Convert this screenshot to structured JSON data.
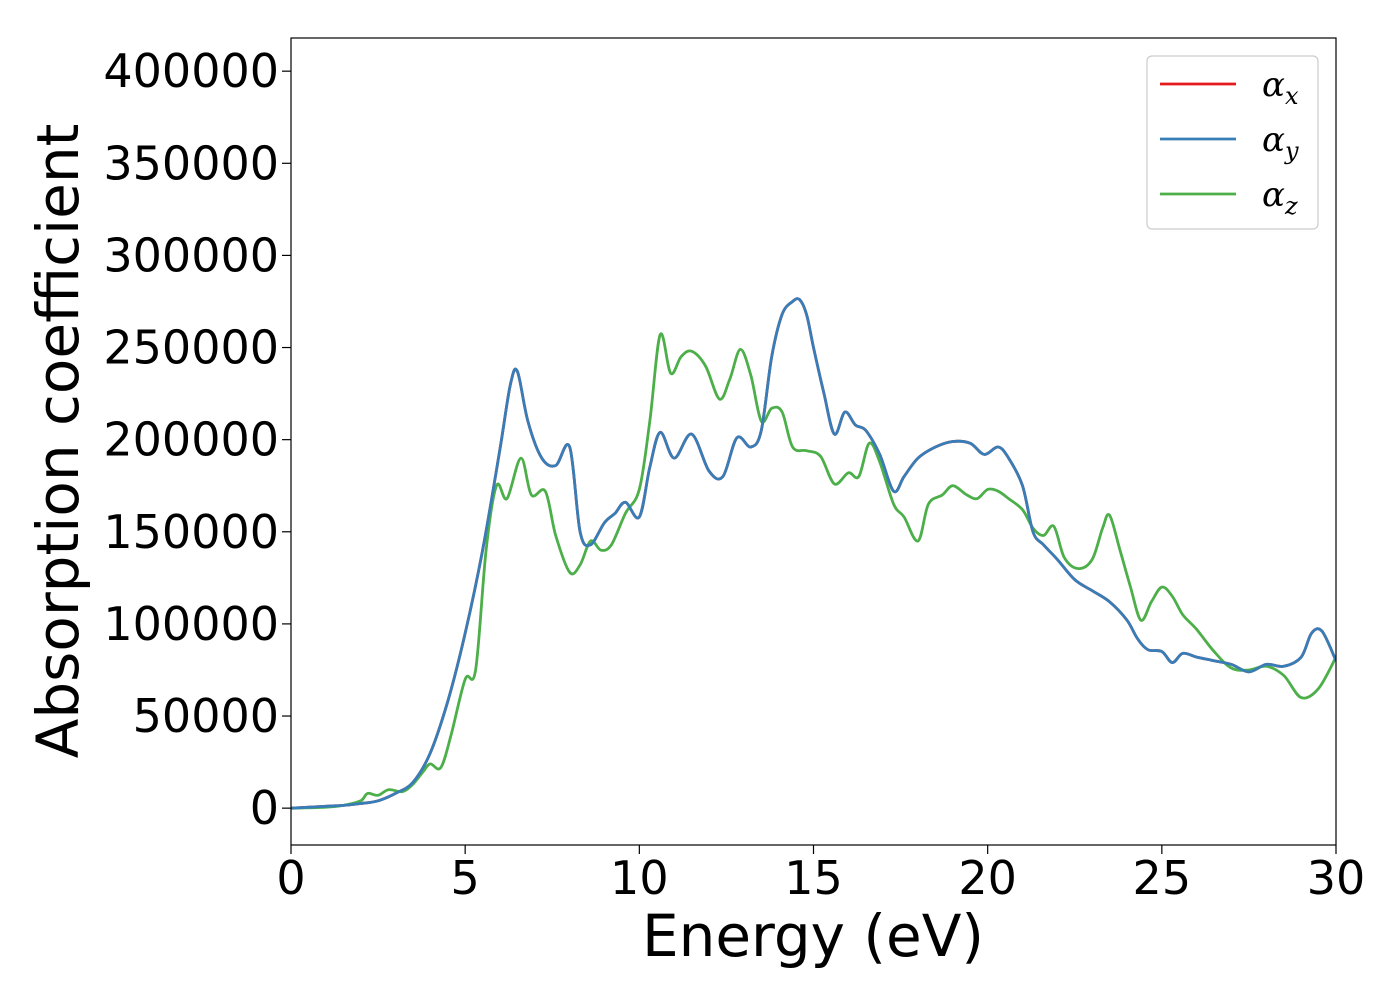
{
  "chart_data": {
    "type": "line",
    "title": "",
    "xlabel": "Energy (eV)",
    "ylabel": "Absorption coefficient",
    "xlim": [
      0,
      30
    ],
    "ylim": [
      -20000,
      418000
    ],
    "xticks": [
      0,
      5,
      10,
      15,
      20,
      25,
      30
    ],
    "xtick_labels": [
      "0",
      "5",
      "10",
      "15",
      "20",
      "25",
      "30"
    ],
    "yticks": [
      0,
      50000,
      100000,
      150000,
      200000,
      250000,
      300000,
      350000,
      400000
    ],
    "ytick_labels": [
      "0",
      "50000",
      "100000",
      "150000",
      "200000",
      "250000",
      "300000",
      "350000",
      "400000"
    ],
    "grid": false,
    "legend_position": "top-right",
    "series": [
      {
        "name": "α_x",
        "legend_base": "α",
        "legend_sub": "x",
        "color": "#e41a1c",
        "x": [
          0,
          1,
          1.5,
          2,
          2.5,
          3,
          3.5,
          4,
          4.5,
          5,
          5.5,
          6,
          6.3,
          6.5,
          6.8,
          7.2,
          7.6,
          8.0,
          8.3,
          8.6,
          9.0,
          9.3,
          9.6,
          10.0,
          10.3,
          10.6,
          11.0,
          11.5,
          12.0,
          12.4,
          12.8,
          13.2,
          13.5,
          13.8,
          14.1,
          14.4,
          14.6,
          14.8,
          15.0,
          15.3,
          15.6,
          15.9,
          16.2,
          16.5,
          16.9,
          17.3,
          17.6,
          18.0,
          18.5,
          19.0,
          19.5,
          19.9,
          20.3,
          20.6,
          21.0,
          21.3,
          21.6,
          22.0,
          22.5,
          23.0,
          23.5,
          24.0,
          24.3,
          24.6,
          25.0,
          25.3,
          25.6,
          26.0,
          26.5,
          27.0,
          27.5,
          28.0,
          28.5,
          29.0,
          29.3,
          29.6,
          30.0
        ],
        "y": [
          0,
          1000,
          1500,
          2500,
          4000,
          8000,
          14000,
          30000,
          58000,
          95000,
          140000,
          195000,
          230000,
          237000,
          210000,
          190000,
          186000,
          196000,
          150000,
          143000,
          155000,
          160000,
          166000,
          158000,
          185000,
          204000,
          190000,
          203000,
          183000,
          180000,
          201000,
          196000,
          205000,
          245000,
          268000,
          275000,
          276000,
          268000,
          250000,
          225000,
          203000,
          215000,
          208000,
          205000,
          192000,
          172000,
          180000,
          190000,
          196000,
          199000,
          198000,
          192000,
          196000,
          190000,
          175000,
          150000,
          143000,
          135000,
          124000,
          118000,
          112000,
          102000,
          92000,
          86000,
          85000,
          79000,
          84000,
          82000,
          80000,
          78000,
          74000,
          78000,
          77000,
          82000,
          95000,
          96000,
          80000
        ]
      },
      {
        "name": "α_y",
        "legend_base": "α",
        "legend_sub": "y",
        "color": "#377eb8",
        "x": [
          0,
          1,
          1.5,
          2,
          2.5,
          3,
          3.5,
          4,
          4.5,
          5,
          5.5,
          6,
          6.3,
          6.5,
          6.8,
          7.2,
          7.6,
          8.0,
          8.3,
          8.6,
          9.0,
          9.3,
          9.6,
          10.0,
          10.3,
          10.6,
          11.0,
          11.5,
          12.0,
          12.4,
          12.8,
          13.2,
          13.5,
          13.8,
          14.1,
          14.4,
          14.6,
          14.8,
          15.0,
          15.3,
          15.6,
          15.9,
          16.2,
          16.5,
          16.9,
          17.3,
          17.6,
          18.0,
          18.5,
          19.0,
          19.5,
          19.9,
          20.3,
          20.6,
          21.0,
          21.3,
          21.6,
          22.0,
          22.5,
          23.0,
          23.5,
          24.0,
          24.3,
          24.6,
          25.0,
          25.3,
          25.6,
          26.0,
          26.5,
          27.0,
          27.5,
          28.0,
          28.5,
          29.0,
          29.3,
          29.6,
          30.0
        ],
        "y": [
          0,
          1000,
          1500,
          2500,
          4000,
          8000,
          14000,
          30000,
          58000,
          95000,
          140000,
          195000,
          230000,
          237000,
          210000,
          190000,
          186000,
          196000,
          150000,
          143000,
          155000,
          160000,
          166000,
          158000,
          185000,
          204000,
          190000,
          203000,
          183000,
          180000,
          201000,
          196000,
          205000,
          245000,
          268000,
          275000,
          276000,
          268000,
          250000,
          225000,
          203000,
          215000,
          208000,
          205000,
          192000,
          172000,
          180000,
          190000,
          196000,
          199000,
          198000,
          192000,
          196000,
          190000,
          175000,
          150000,
          143000,
          135000,
          124000,
          118000,
          112000,
          102000,
          92000,
          86000,
          85000,
          79000,
          84000,
          82000,
          80000,
          78000,
          74000,
          78000,
          77000,
          82000,
          95000,
          96000,
          80000
        ]
      },
      {
        "name": "α_z",
        "legend_base": "α",
        "legend_sub": "z",
        "color": "#4daf4a",
        "x": [
          0,
          1,
          1.5,
          2,
          2.2,
          2.5,
          2.8,
          3.2,
          3.5,
          3.8,
          4.0,
          4.3,
          4.6,
          5.0,
          5.3,
          5.6,
          5.9,
          6.2,
          6.6,
          6.9,
          7.3,
          7.6,
          8.0,
          8.3,
          8.6,
          8.9,
          9.2,
          9.6,
          10.0,
          10.3,
          10.6,
          10.9,
          11.2,
          11.5,
          11.9,
          12.3,
          12.6,
          12.9,
          13.2,
          13.5,
          13.8,
          14.1,
          14.4,
          14.8,
          15.2,
          15.6,
          16.0,
          16.3,
          16.6,
          16.9,
          17.3,
          17.6,
          18.0,
          18.3,
          18.7,
          19.0,
          19.4,
          19.7,
          20.0,
          20.3,
          20.6,
          21.0,
          21.3,
          21.6,
          21.9,
          22.2,
          22.6,
          23.0,
          23.3,
          23.5,
          23.8,
          24.1,
          24.4,
          24.7,
          25.0,
          25.3,
          25.6,
          26.0,
          26.5,
          27.0,
          27.5,
          28.0,
          28.5,
          29.0,
          29.5,
          30.0
        ],
        "y": [
          0,
          500,
          1500,
          4000,
          8000,
          7000,
          10000,
          9000,
          13000,
          20000,
          24000,
          22000,
          40000,
          70000,
          75000,
          140000,
          175000,
          168000,
          190000,
          170000,
          172000,
          148000,
          128000,
          132000,
          145000,
          140000,
          143000,
          160000,
          173000,
          210000,
          257000,
          236000,
          245000,
          248000,
          240000,
          222000,
          233000,
          249000,
          235000,
          210000,
          217000,
          215000,
          196000,
          194000,
          191000,
          176000,
          182000,
          180000,
          198000,
          188000,
          165000,
          158000,
          145000,
          165000,
          170000,
          175000,
          170000,
          168000,
          173000,
          172000,
          168000,
          162000,
          152000,
          148000,
          153000,
          136000,
          130000,
          135000,
          152000,
          159000,
          140000,
          120000,
          102000,
          112000,
          120000,
          115000,
          105000,
          97000,
          85000,
          76000,
          75000,
          77000,
          72000,
          60000,
          65000,
          82000
        ]
      }
    ]
  }
}
